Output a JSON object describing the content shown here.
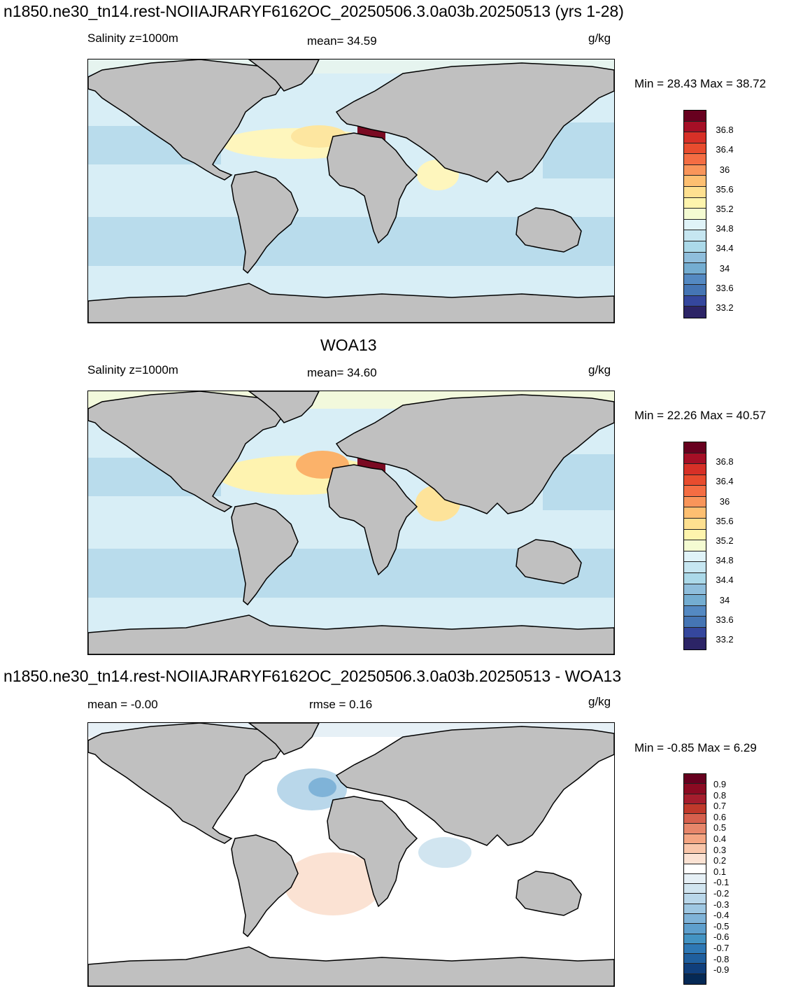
{
  "colors": {
    "land": "#c0c0c0",
    "coast": "#000000"
  },
  "panels": [
    {
      "title": "n1850.ne30_tn14.rest-NOIIAJRARYF6162OC_20250506.3.0a03b.20250513 (yrs 1-28)",
      "left_label": "Salinity z=1000m",
      "center_label": "mean=  34.59",
      "unit": "g/kg",
      "minmax": "Min =  28.43 Max =  38.72",
      "ocean_base": "#d8eef6",
      "colorbar": {
        "colors": [
          "#68001f",
          "#a50f26",
          "#d73027",
          "#e84c2e",
          "#f46d43",
          "#f9955a",
          "#fdbf71",
          "#fee090",
          "#fef4ad",
          "#f4fbd2",
          "#e0f3f8",
          "#c6e6f1",
          "#abd9e9",
          "#8fbedc",
          "#74add1",
          "#5489c2",
          "#4575b4",
          "#35479d",
          "#2c2466"
        ],
        "labels": [
          "36.8",
          "36.4",
          "36",
          "35.6",
          "35.2",
          "34.8",
          "34.4",
          "34",
          "33.6",
          "33.2"
        ]
      }
    },
    {
      "title": "WOA13",
      "left_label": "Salinity z=1000m",
      "center_label": "mean=  34.60",
      "unit": "g/kg",
      "minmax": "Min =  22.26 Max =  40.57",
      "ocean_base": "#d8eef6",
      "colorbar": {
        "colors": [
          "#68001f",
          "#a50f26",
          "#d73027",
          "#e84c2e",
          "#f46d43",
          "#f9955a",
          "#fdbf71",
          "#fee090",
          "#fef4ad",
          "#f4fbd2",
          "#e0f3f8",
          "#c6e6f1",
          "#abd9e9",
          "#8fbedc",
          "#74add1",
          "#5489c2",
          "#4575b4",
          "#35479d",
          "#2c2466"
        ],
        "labels": [
          "36.8",
          "36.4",
          "36",
          "35.6",
          "35.2",
          "34.8",
          "34.4",
          "34",
          "33.6",
          "33.2"
        ]
      }
    },
    {
      "title": "n1850.ne30_tn14.rest-NOIIAJRARYF6162OC_20250506.3.0a03b.20250513 - WOA13",
      "left_label": "mean =  -0.00",
      "center_label": "rmse =   0.16",
      "unit": "g/kg",
      "minmax": "Min =  -0.85 Max =   6.29",
      "ocean_base": "#ffffff",
      "colorbar": {
        "colors": [
          "#67001f",
          "#8b0a22",
          "#a51d2d",
          "#c0392b",
          "#d6604d",
          "#e7866a",
          "#f4a582",
          "#f9c6aa",
          "#fbe2d3",
          "#ffffff",
          "#e6f0f6",
          "#d1e5f0",
          "#b9d7ea",
          "#9ec7e2",
          "#7fb3d8",
          "#5e9fcd",
          "#4393c3",
          "#2e78b5",
          "#1f5f9e",
          "#103f7c",
          "#052955"
        ],
        "labels": [
          "0.9",
          "0.8",
          "0.7",
          "0.6",
          "0.5",
          "0.4",
          "0.3",
          "0.2",
          "0.1",
          "-0.1",
          "-0.2",
          "-0.3",
          "-0.4",
          "-0.5",
          "-0.6",
          "-0.7",
          "-0.8",
          "-0.9"
        ]
      }
    }
  ]
}
